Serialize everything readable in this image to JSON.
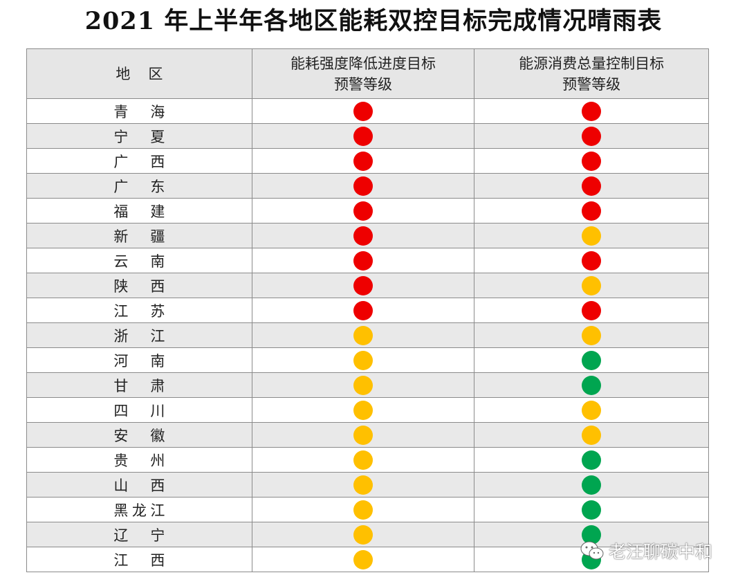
{
  "title": "2021 年上半年各地区能耗双控目标完成情况晴雨表",
  "table": {
    "header": [
      [
        "地区"
      ],
      [
        "能耗强度降低进度目标",
        "预警等级"
      ],
      [
        "能源消费总量控制目标",
        "预警等级"
      ]
    ],
    "rows": [
      [
        "青海",
        "#ee0000",
        "#ee0000"
      ],
      [
        "宁夏",
        "#ee0000",
        "#ee0000"
      ],
      [
        "广西",
        "#ee0000",
        "#ee0000"
      ],
      [
        "广东",
        "#ee0000",
        "#ee0000"
      ],
      [
        "福建",
        "#ee0000",
        "#ee0000"
      ],
      [
        "新疆",
        "#ee0000",
        "#ffc000"
      ],
      [
        "云南",
        "#ee0000",
        "#ee0000"
      ],
      [
        "陕西",
        "#ee0000",
        "#ffc000"
      ],
      [
        "江苏",
        "#ee0000",
        "#ee0000"
      ],
      [
        "浙江",
        "#ffc000",
        "#ffc000"
      ],
      [
        "河南",
        "#ffc000",
        "#00a550"
      ],
      [
        "甘肃",
        "#ffc000",
        "#00a550"
      ],
      [
        "四川",
        "#ffc000",
        "#ffc000"
      ],
      [
        "安徽",
        "#ffc000",
        "#ffc000"
      ],
      [
        "贵州",
        "#ffc000",
        "#00a550"
      ],
      [
        "山西",
        "#ffc000",
        "#00a550"
      ],
      [
        "黑龙江",
        "#ffc000",
        "#00a550"
      ],
      [
        "辽宁",
        "#ffc000",
        "#00a550"
      ],
      [
        "江西",
        "#ffc000",
        "#00a550"
      ]
    ]
  },
  "watermark": "老汪聊碳中和"
}
